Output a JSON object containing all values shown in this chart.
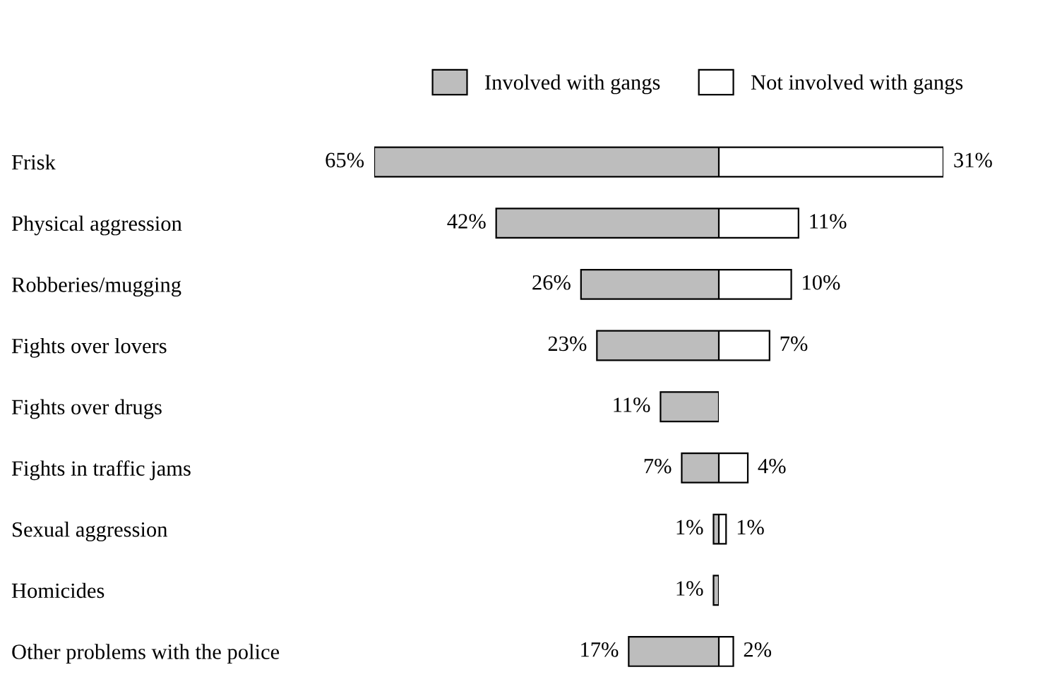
{
  "chart_data": [
    {
      "type": "bar",
      "orientation": "horizontal",
      "xlim": [
        65,
        0
      ],
      "categories": [
        "Frisk",
        "Physical aggression",
        "Robberies/mugging",
        "Fights over lovers",
        "Fights over drugs",
        "Fights in traffic jams",
        "Sexual aggression",
        "Homicides",
        "Other problems with the police"
      ],
      "series": [
        {
          "name": "Involved with gangs",
          "color": "#bdbdbd",
          "values": [
            65,
            42,
            26,
            23,
            11,
            7,
            1,
            1,
            17
          ],
          "value_labels": [
            "65%",
            "42%",
            "26%",
            "23%",
            "11%",
            "7%",
            "1%",
            "1%",
            "17%"
          ]
        }
      ],
      "legend": "top",
      "grid": false,
      "tick_labels": "y"
    },
    {
      "type": "bar",
      "orientation": "horizontal",
      "xlim": [
        0,
        31
      ],
      "categories": [
        null,
        null,
        null,
        null,
        null,
        null,
        null,
        null,
        null
      ],
      "series": [
        {
          "name": "Not involved with gangs",
          "color": "#ffffff",
          "values": [
            31,
            11,
            10,
            7,
            null,
            4,
            1,
            null,
            2
          ],
          "value_labels": [
            "31%",
            "11%",
            "10%",
            "7%",
            null,
            "4%",
            "1%",
            null,
            "2%"
          ]
        }
      ],
      "legend": "top",
      "grid": false,
      "tick_labels": false
    }
  ]
}
